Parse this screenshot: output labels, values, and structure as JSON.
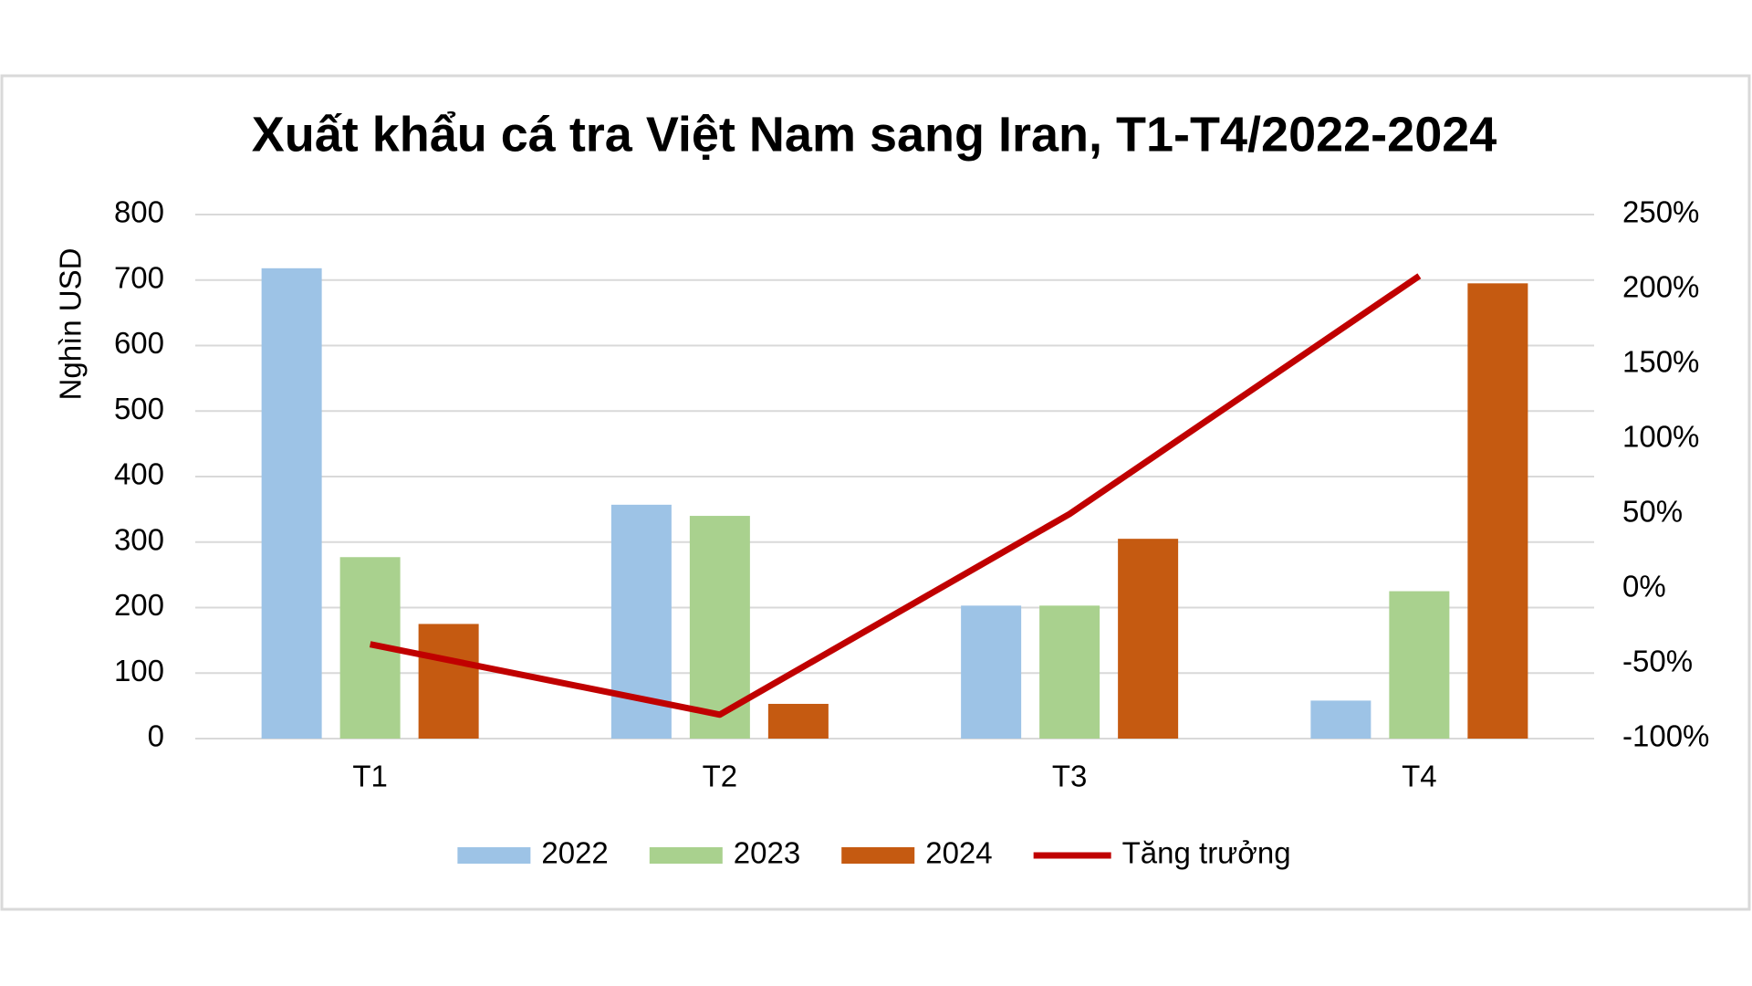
{
  "chart_data": {
    "type": "bar",
    "title": "Xuất khẩu cá tra Việt Nam sang Iran, T1-T4/2022-2024",
    "y_label": "Nghìn USD",
    "categories": [
      "T1",
      "T2",
      "T3",
      "T4"
    ],
    "series": [
      {
        "name": "2022",
        "color": "#9dc3e6",
        "values": [
          718,
          357,
          203,
          58
        ]
      },
      {
        "name": "2023",
        "color": "#a9d18e",
        "values": [
          277,
          340,
          203,
          225
        ]
      },
      {
        "name": "2024",
        "color": "#c55a11",
        "values": [
          175,
          53,
          305,
          695
        ]
      },
      {
        "name": "Tăng trưởng",
        "color": "#c00000",
        "type": "line",
        "axis": "y2",
        "values": [
          -37,
          -84,
          50,
          209
        ]
      }
    ],
    "ylim": [
      0,
      800
    ],
    "yticks": [
      0,
      100,
      200,
      300,
      400,
      500,
      600,
      700,
      800
    ],
    "y2lim": [
      -100,
      250
    ],
    "y2ticks": [
      {
        "value": -100,
        "label": "-100%"
      },
      {
        "value": -50,
        "label": "-50%"
      },
      {
        "value": 0,
        "label": "0%"
      },
      {
        "value": 50,
        "label": "50%"
      },
      {
        "value": 100,
        "label": "100%"
      },
      {
        "value": 150,
        "label": "150%"
      },
      {
        "value": 200,
        "label": "200%"
      },
      {
        "value": 250,
        "label": "250%"
      }
    ],
    "grid": true,
    "legend": "bottom"
  }
}
